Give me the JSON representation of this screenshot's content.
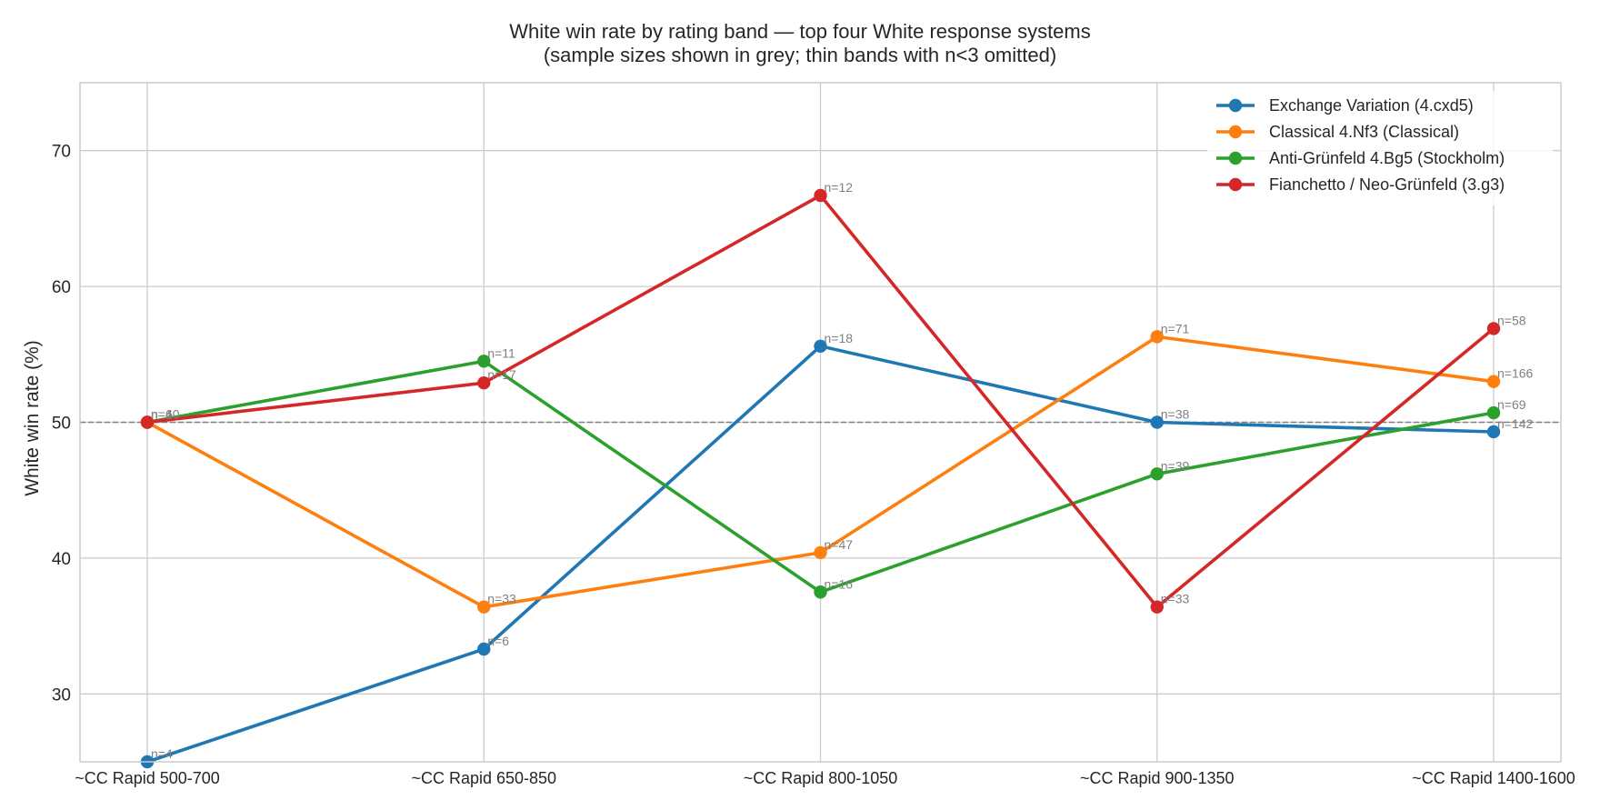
{
  "chart_data": {
    "type": "line",
    "title": "White win rate by rating band — top four White response systems",
    "subtitle": "(sample sizes shown in grey; thin bands with n<3 omitted)",
    "xlabel": "",
    "ylabel": "White win rate (%)",
    "categories": [
      "~CC Rapid 500-700",
      "~CC Rapid 650-850",
      "~CC Rapid 800-1050",
      "~CC Rapid 900-1350",
      "~CC Rapid 1400-1600"
    ],
    "ylim": [
      25,
      75
    ],
    "yticks": [
      30,
      40,
      50,
      60,
      70
    ],
    "reference_line": 50,
    "grid": true,
    "legend": "top-right",
    "series": [
      {
        "name": "Exchange Variation (4.cxd5)",
        "color": "#1f77b4",
        "values": [
          25,
          33.3,
          55.6,
          50,
          49.3
        ],
        "n_labels": [
          "n=4",
          "n=6",
          "n=18",
          "n=38",
          "n=142"
        ]
      },
      {
        "name": "Classical 4.Nf3 (Classical)",
        "color": "#ff7f0e",
        "values": [
          50,
          36.4,
          40.4,
          56.3,
          53
        ],
        "n_labels": [
          "n=4",
          "n=33",
          "n=47",
          "n=71",
          "n=166"
        ]
      },
      {
        "name": "Anti-Grünfeld 4.Bg5 (Stockholm)",
        "color": "#2ca02c",
        "values": [
          50,
          54.5,
          37.5,
          46.2,
          50.7
        ],
        "n_labels": [
          "n=10",
          "n=11",
          "n=16",
          "n=39",
          "n=69"
        ]
      },
      {
        "name": "Fianchetto / Neo-Grünfeld (3.g3)",
        "color": "#d62728",
        "values": [
          50,
          52.9,
          66.7,
          36.4,
          56.9
        ],
        "n_labels": [
          "n=6",
          "n=17",
          "n=12",
          "n=33",
          "n=58"
        ]
      }
    ]
  }
}
